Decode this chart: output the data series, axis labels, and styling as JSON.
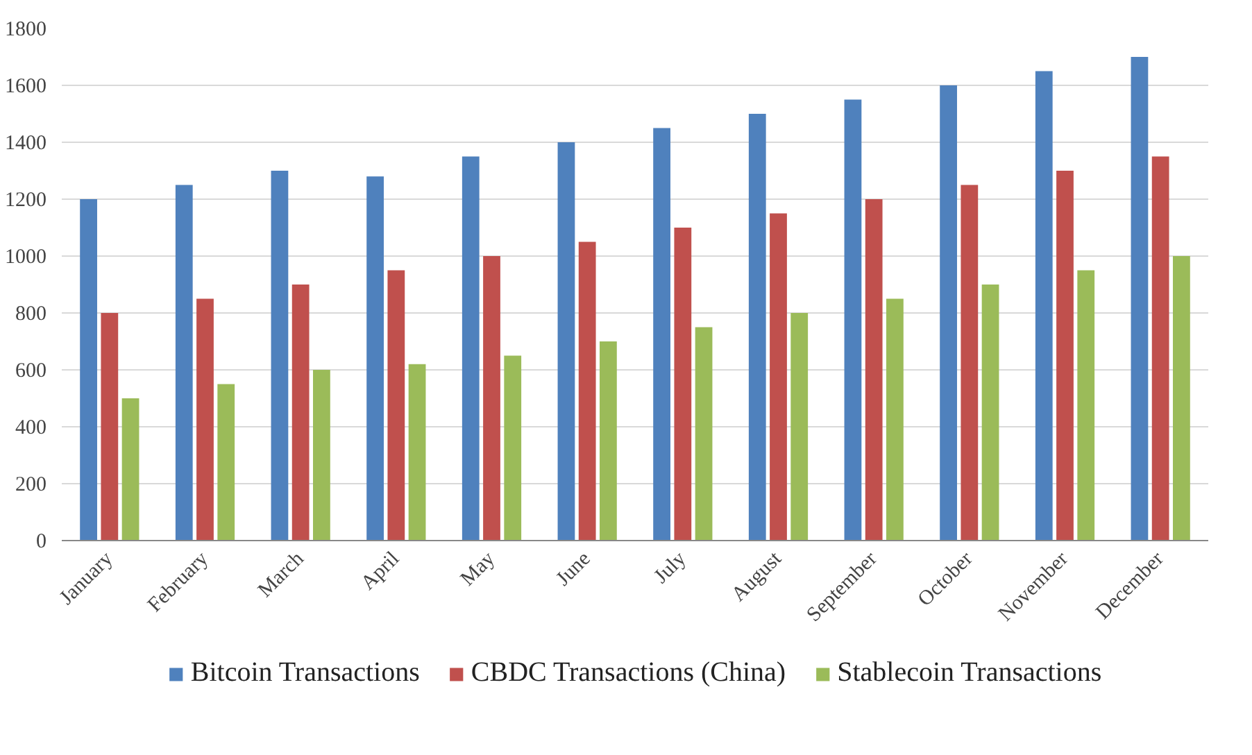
{
  "chart_data": {
    "type": "bar",
    "categories": [
      "January",
      "February",
      "March",
      "April",
      "May",
      "June",
      "July",
      "August",
      "September",
      "October",
      "November",
      "December"
    ],
    "series": [
      {
        "name": "Bitcoin Transactions",
        "color": "#4f81bd",
        "values": [
          1200,
          1250,
          1300,
          1280,
          1350,
          1400,
          1450,
          1500,
          1550,
          1600,
          1650,
          1700
        ]
      },
      {
        "name": "CBDC Transactions (China)",
        "color": "#c0504d",
        "values": [
          800,
          850,
          900,
          950,
          1000,
          1050,
          1100,
          1150,
          1200,
          1250,
          1300,
          1350
        ]
      },
      {
        "name": "Stablecoin Transactions",
        "color": "#9bbb59",
        "values": [
          500,
          550,
          600,
          620,
          650,
          700,
          750,
          800,
          850,
          900,
          950,
          1000
        ]
      }
    ],
    "ylim": [
      0,
      1800
    ],
    "yticks": [
      0,
      200,
      400,
      600,
      800,
      1000,
      1200,
      1400,
      1600,
      1800
    ],
    "grid": "y",
    "legend": "bottom"
  }
}
